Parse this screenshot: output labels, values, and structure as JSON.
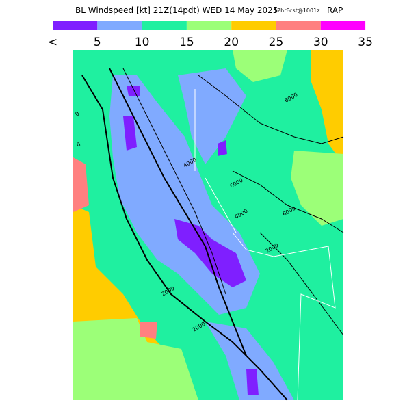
{
  "header": {
    "title": "BL Windspeed [kt] 21Z(14pdt) WED 14 May 2025",
    "forecast": "12hrFcst@1001z",
    "model": "RAP"
  },
  "legend": {
    "colors": [
      "#7f1fff",
      "#80aaff",
      "#1ff0a0",
      "#9cff78",
      "#ffcc00",
      "#ff8080",
      "#ff00ff"
    ],
    "labels": [
      "<",
      "5",
      "10",
      "15",
      "20",
      "25",
      "30",
      "35"
    ]
  },
  "map": {
    "contour_labels": [
      "6000",
      "6000",
      "6000",
      "4000",
      "2000",
      "2000",
      "2000",
      "4000",
      "0",
      "0"
    ]
  }
}
